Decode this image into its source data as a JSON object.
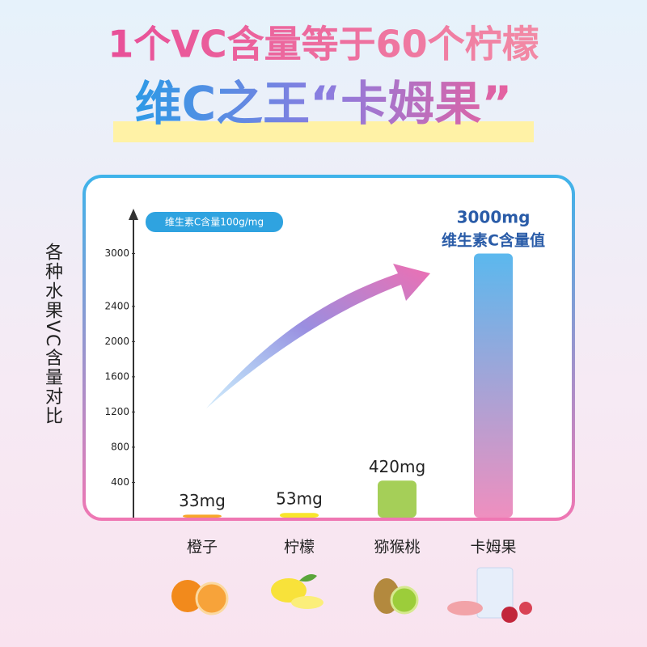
{
  "chart_data": {
    "type": "bar",
    "title": "1个VC含量等于60个柠檬",
    "subtitle": "维C之王“卡姆果”",
    "y_label": "各种水果VC含量对比",
    "badge": "维生素C含量100g/mg",
    "categories": [
      "橙子",
      "柠檬",
      "猕猴桃",
      "卡姆果"
    ],
    "values": [
      33,
      53,
      420,
      3000
    ],
    "value_labels": [
      "33mg",
      "53mg",
      "420mg",
      "3000mg"
    ],
    "annotation": "维生素C含量值",
    "colors": [
      "#f7a62a",
      "#f8e62c",
      "#a5cf58",
      "#5bb8ee"
    ],
    "ylim": [
      0,
      3400
    ],
    "yticks": [
      400,
      800,
      1200,
      1600,
      2000,
      2400,
      3000
    ]
  }
}
